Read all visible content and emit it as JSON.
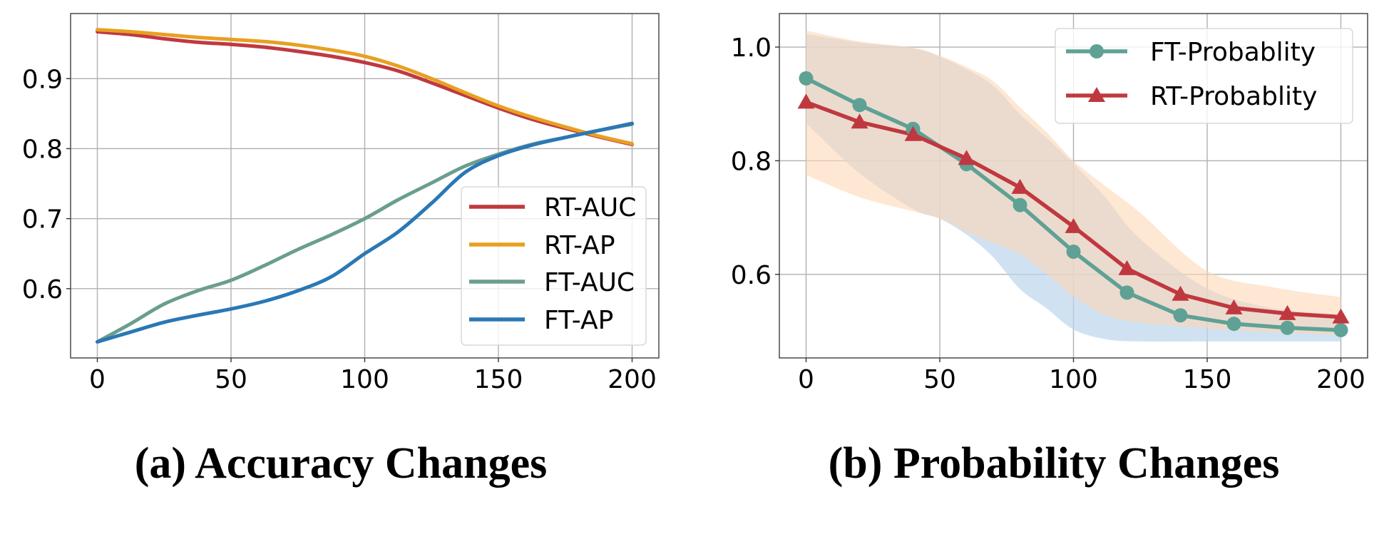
{
  "chart_data": [
    {
      "id": "accuracy",
      "type": "line",
      "caption": "(a) Accuracy Changes",
      "title": "",
      "xlabel": "",
      "ylabel": "",
      "xlim": [
        -10,
        210
      ],
      "ylim": [
        0.501,
        0.993
      ],
      "xticks": [
        0,
        50,
        100,
        150,
        200
      ],
      "xtick_labels": [
        "0",
        "50",
        "100",
        "150",
        "200"
      ],
      "yticks": [
        0.6,
        0.7,
        0.8,
        0.9
      ],
      "ytick_labels": [
        "0.6",
        "0.7",
        "0.8",
        "0.9"
      ],
      "grid": true,
      "legend_position": "lower-right",
      "series": [
        {
          "name": "RT-AUC",
          "color": "#c0393f",
          "x": [
            0,
            12.5,
            25,
            37.5,
            50,
            62.5,
            75,
            87.5,
            100,
            112.5,
            125,
            137.5,
            150,
            162.5,
            175,
            187.5,
            200
          ],
          "y": [
            0.967,
            0.963,
            0.957,
            0.952,
            0.949,
            0.945,
            0.939,
            0.932,
            0.923,
            0.911,
            0.894,
            0.876,
            0.858,
            0.842,
            0.829,
            0.817,
            0.806
          ]
        },
        {
          "name": "RT-AP",
          "color": "#e8a021",
          "x": [
            0,
            12.5,
            25,
            37.5,
            50,
            62.5,
            75,
            87.5,
            100,
            112.5,
            125,
            137.5,
            150,
            162.5,
            175,
            187.5,
            200
          ],
          "y": [
            0.97,
            0.967,
            0.963,
            0.959,
            0.956,
            0.953,
            0.948,
            0.941,
            0.932,
            0.918,
            0.9,
            0.88,
            0.861,
            0.845,
            0.831,
            0.818,
            0.807
          ]
        },
        {
          "name": "FT-AUC",
          "color": "#6a9e8f",
          "x": [
            0,
            12.5,
            25,
            37.5,
            50,
            62.5,
            75,
            87.5,
            100,
            112.5,
            125,
            137.5,
            150,
            162.5,
            175,
            187.5,
            200
          ],
          "y": [
            0.524,
            0.55,
            0.578,
            0.597,
            0.612,
            0.633,
            0.656,
            0.677,
            0.7,
            0.727,
            0.751,
            0.775,
            0.792,
            0.806,
            0.816,
            0.826,
            0.835
          ]
        },
        {
          "name": "FT-AP",
          "color": "#2a78b5",
          "x": [
            0,
            12.5,
            25,
            37.5,
            50,
            62.5,
            75,
            87.5,
            100,
            112.5,
            125,
            137.5,
            150,
            162.5,
            175,
            187.5,
            200
          ],
          "y": [
            0.524,
            0.538,
            0.552,
            0.562,
            0.571,
            0.582,
            0.597,
            0.617,
            0.65,
            0.681,
            0.722,
            0.766,
            0.79,
            0.805,
            0.816,
            0.826,
            0.836
          ]
        }
      ]
    },
    {
      "id": "probability",
      "type": "line",
      "caption": "(b) Probability Changes",
      "title": "",
      "xlabel": "",
      "ylabel": "",
      "xlim": [
        -10,
        210
      ],
      "ylim": [
        0.453,
        1.059
      ],
      "xticks": [
        0,
        50,
        100,
        150,
        200
      ],
      "xtick_labels": [
        "0",
        "50",
        "100",
        "150",
        "200"
      ],
      "yticks": [
        0.6,
        0.8,
        1.0
      ],
      "ytick_labels": [
        "0.6",
        "0.8",
        "1.0"
      ],
      "grid": true,
      "legend_position": "upper-right",
      "series": [
        {
          "name": "FT-Probablity",
          "color": "#5fa195",
          "marker": "circle",
          "band_color": "#bcd6ec",
          "x": [
            0,
            20,
            40,
            60,
            80,
            100,
            120,
            140,
            160,
            180,
            200
          ],
          "y": [
            0.945,
            0.898,
            0.856,
            0.794,
            0.722,
            0.64,
            0.568,
            0.528,
            0.513,
            0.506,
            0.502
          ],
          "band_x": [
            0,
            20,
            40,
            50,
            60,
            70,
            80,
            90,
            100,
            112,
            125,
            150,
            175,
            200
          ],
          "band_upper": [
            1.023,
            1.008,
            0.998,
            0.983,
            0.961,
            0.932,
            0.882,
            0.84,
            0.795,
            0.735,
            0.662,
            0.575,
            0.54,
            0.53
          ],
          "band_lower": [
            0.866,
            0.778,
            0.715,
            0.698,
            0.67,
            0.63,
            0.574,
            0.54,
            0.503,
            0.486,
            0.482,
            0.482,
            0.482,
            0.482
          ]
        },
        {
          "name": "RT-Probablity",
          "color": "#c0383f",
          "marker": "triangle",
          "band_color": "#fdd7b6",
          "x": [
            0,
            20,
            40,
            60,
            80,
            100,
            120,
            140,
            160,
            180,
            200
          ],
          "y": [
            0.903,
            0.868,
            0.846,
            0.804,
            0.753,
            0.684,
            0.61,
            0.565,
            0.541,
            0.531,
            0.525
          ],
          "band_x": [
            0,
            20,
            40,
            50,
            60,
            70,
            80,
            90,
            100,
            112,
            125,
            150,
            175,
            200
          ],
          "band_upper": [
            1.029,
            1.01,
            0.999,
            0.985,
            0.965,
            0.94,
            0.894,
            0.85,
            0.8,
            0.755,
            0.708,
            0.606,
            0.577,
            0.56
          ],
          "band_lower": [
            0.775,
            0.736,
            0.711,
            0.698,
            0.675,
            0.655,
            0.636,
            0.6,
            0.561,
            0.528,
            0.515,
            0.505,
            0.498,
            0.493
          ]
        }
      ]
    }
  ]
}
